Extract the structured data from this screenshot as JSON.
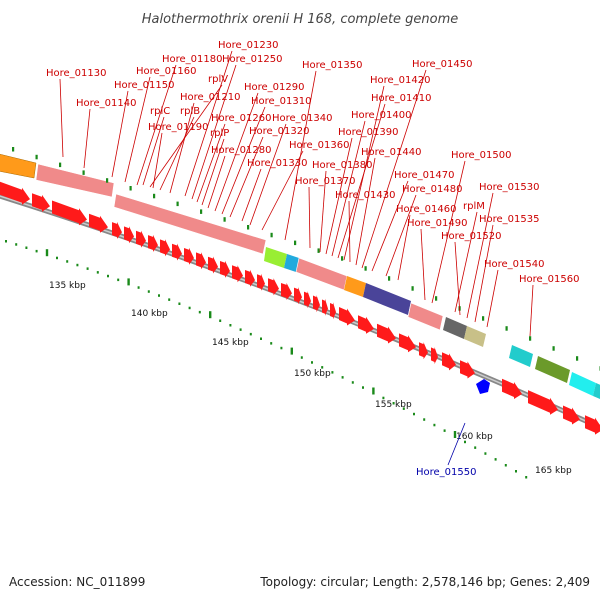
{
  "header": {
    "title": "Halothermothrix orenii H 168, complete genome"
  },
  "footer": {
    "accession": "Accession: NC_011899",
    "summary": "Topology: circular; Length: 2,578,146 bp; Genes: 2,409"
  },
  "scale": {
    "ticks": [
      "135 kbp",
      "140 kbp",
      "145 kbp",
      "150 kbp",
      "155 kbp",
      "160 kbp",
      "165 kbp"
    ]
  },
  "gene_labels": [
    "Hore_01130",
    "Hore_01140",
    "Hore_01150",
    "Hore_01160",
    "Hore_01180",
    "Hore_01230",
    "Hore_01250",
    "rplV",
    "rplC",
    "rplB",
    "Hore_01210",
    "Hore_01190",
    "Hore_01260",
    "rplP",
    "Hore_01280",
    "Hore_01290",
    "Hore_01310",
    "Hore_01320",
    "Hore_01330",
    "Hore_01340",
    "Hore_01350",
    "Hore_01360",
    "Hore_01370",
    "Hore_01380",
    "Hore_01390",
    "Hore_01400",
    "Hore_01410",
    "Hore_01420",
    "Hore_01430",
    "Hore_01440",
    "Hore_01450",
    "Hore_01460",
    "Hore_01470",
    "Hore_01480",
    "Hore_01490",
    "Hore_01500",
    "rplM",
    "Hore_01520",
    "Hore_01530",
    "Hore_01535",
    "Hore_01540",
    "Hore_01560"
  ],
  "reverse_gene_label": "Hore_01550",
  "colors": {
    "forward_cds": "#ff0000",
    "reverse_cds": "#0000ff",
    "ribosomal": "#f08080",
    "leader_line": "#cc0000",
    "reverse_leader": "#0000aa",
    "backbone": "#888888",
    "tick_green": "#1a8a1a"
  }
}
